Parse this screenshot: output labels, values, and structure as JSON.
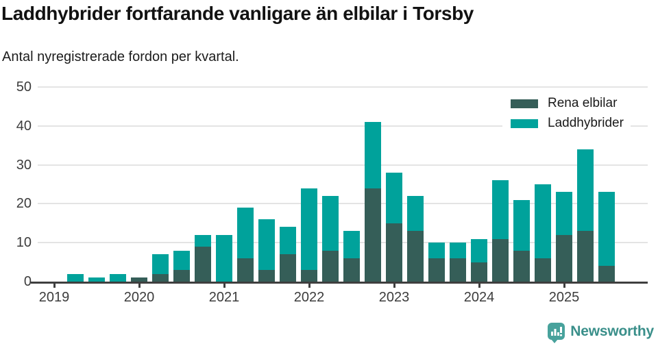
{
  "title": "Laddhybrider fortfarande vanligare än elbilar i Torsby",
  "subtitle": "Antal nyregistrerade fordon per kvartal.",
  "legend": {
    "items": [
      {
        "label": "Rena elbilar",
        "color": "#355E58"
      },
      {
        "label": "Laddhybrider",
        "color": "#00A29B"
      }
    ]
  },
  "footer": {
    "brand": "Newsworthy",
    "brand_color": "#3A8F8A",
    "icon": "newsworthy-barchart-pin-icon",
    "icon_color": "#48A29C"
  },
  "chart_data": {
    "type": "bar",
    "stacked": true,
    "title": "Laddhybrider fortfarande vanligare än elbilar i Torsby",
    "subtitle": "Antal nyregistrerade fordon per kvartal.",
    "xlabel": "",
    "ylabel": "",
    "ylim": [
      0,
      50
    ],
    "y_ticks": [
      0,
      10,
      20,
      30,
      40,
      50
    ],
    "grid": true,
    "legend_position": "top-right",
    "x_tick_labels": [
      "2019",
      "2020",
      "2021",
      "2022",
      "2023",
      "2024",
      "2025"
    ],
    "categories": [
      "2019 Q1",
      "2019 Q2",
      "2019 Q3",
      "2019 Q4",
      "2020 Q1",
      "2020 Q2",
      "2020 Q3",
      "2020 Q4",
      "2021 Q1",
      "2021 Q2",
      "2021 Q3",
      "2021 Q4",
      "2022 Q1",
      "2022 Q2",
      "2022 Q3",
      "2022 Q4",
      "2023 Q1",
      "2023 Q2",
      "2023 Q3",
      "2023 Q4",
      "2024 Q1",
      "2024 Q2",
      "2024 Q3",
      "2024 Q4",
      "2025 Q1",
      "2025 Q2",
      "2025 Q3"
    ],
    "series": [
      {
        "name": "Rena elbilar",
        "color": "#355E58",
        "values": [
          0,
          0,
          0,
          0,
          1,
          2,
          3,
          9,
          0,
          6,
          3,
          7,
          3,
          8,
          6,
          24,
          15,
          13,
          6,
          6,
          5,
          11,
          8,
          6,
          12,
          13,
          4
        ]
      },
      {
        "name": "Laddhybrider",
        "color": "#00A29B",
        "values": [
          0,
          2,
          1,
          2,
          0,
          5,
          5,
          3,
          12,
          13,
          13,
          7,
          21,
          14,
          7,
          17,
          13,
          9,
          4,
          4,
          6,
          15,
          13,
          19,
          11,
          21,
          19
        ]
      }
    ],
    "totals": [
      0,
      2,
      1,
      2,
      1,
      7,
      8,
      12,
      12,
      19,
      16,
      14,
      24,
      22,
      13,
      41,
      28,
      22,
      10,
      10,
      11,
      26,
      21,
      25,
      23,
      34,
      23
    ]
  }
}
